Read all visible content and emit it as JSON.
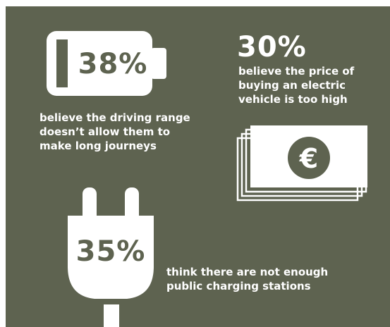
{
  "stats": [
    {
      "value": "38%",
      "lines": [
        "believe the driving range",
        "doesn’t allow them to",
        "make long journeys"
      ]
    },
    {
      "value": "30%",
      "lines": [
        "believe the price of",
        "buying an electric",
        "vehicle is too high"
      ]
    },
    {
      "value": "35%",
      "lines": [
        "think there are not enough",
        "public charging stations"
      ]
    }
  ],
  "currency_symbol": "€"
}
